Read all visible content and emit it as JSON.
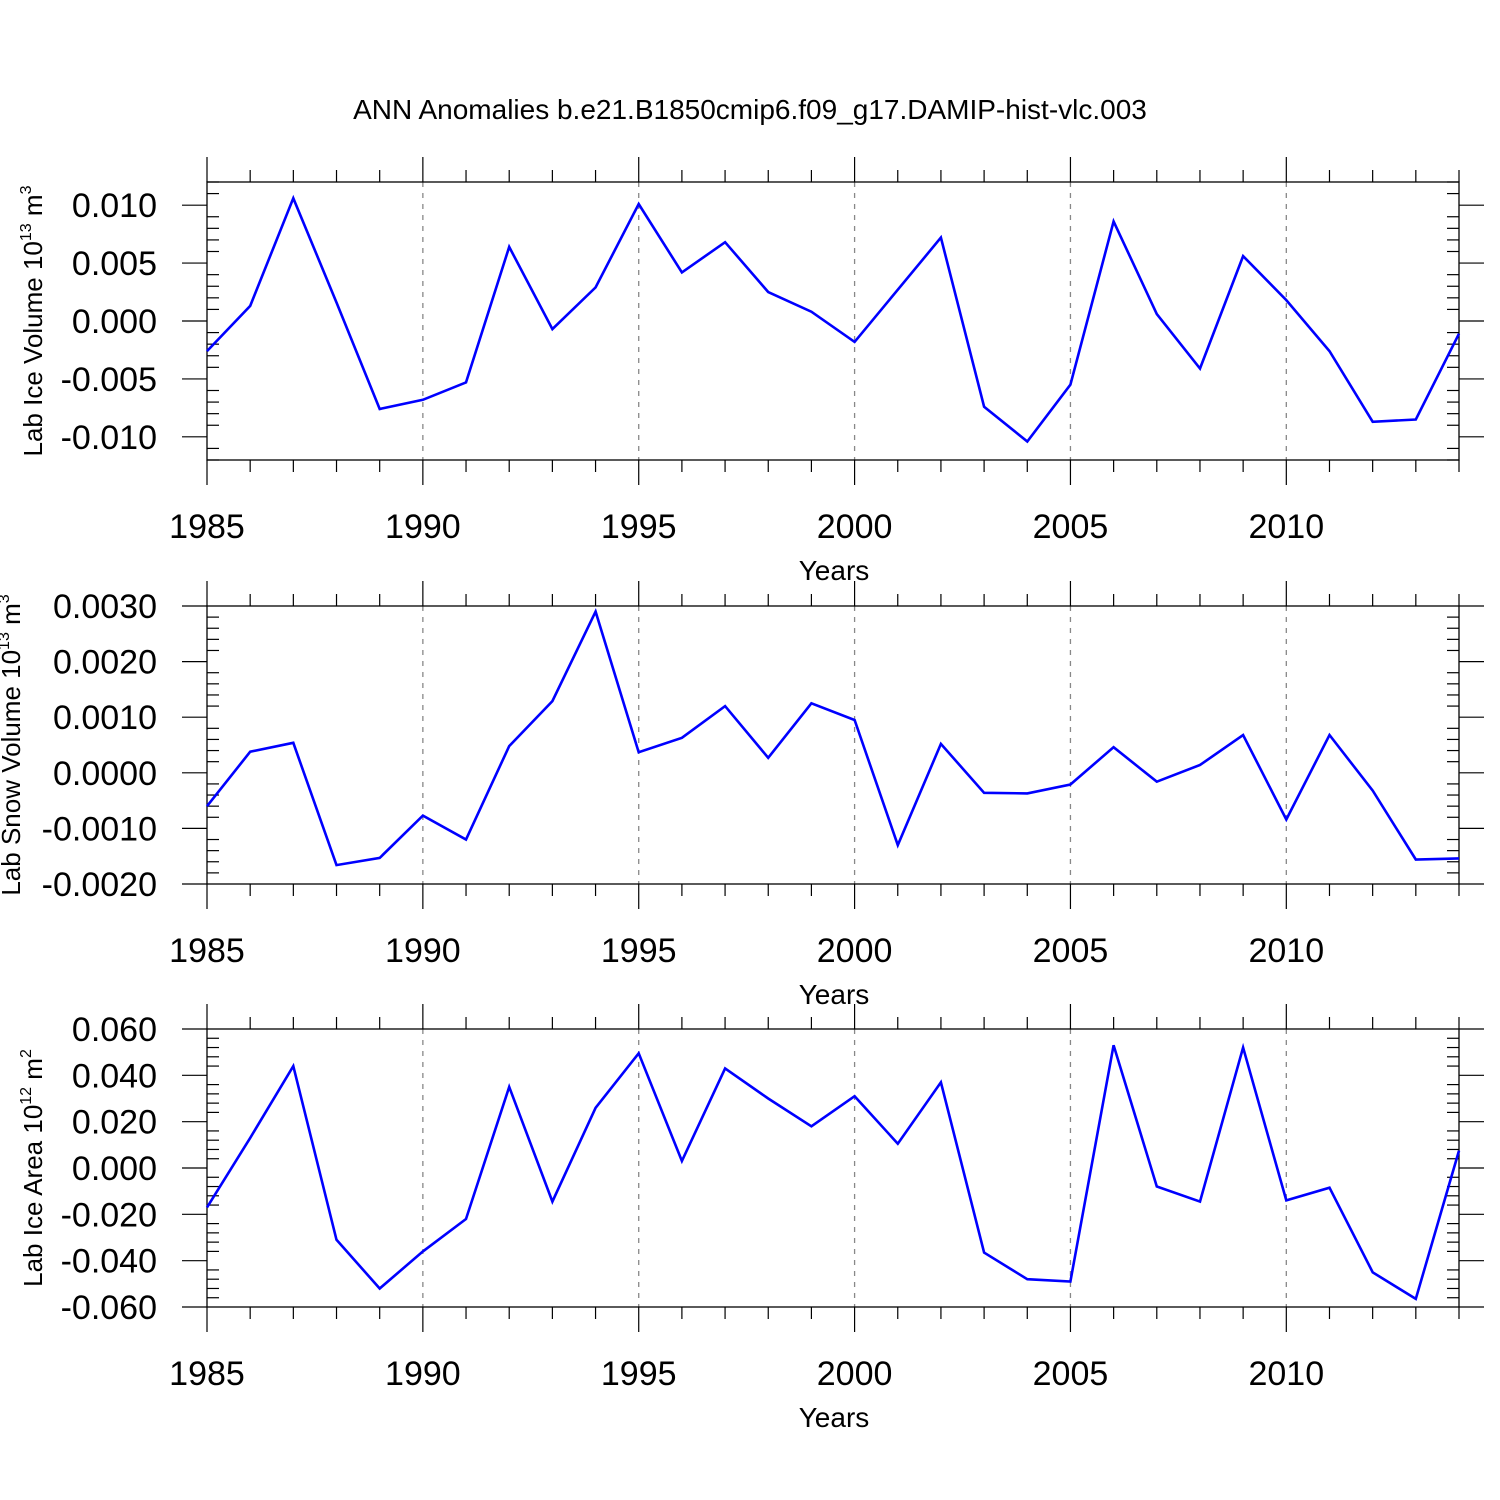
{
  "title": "ANN Anomalies b.e21.B1850cmip6.f09_g17.DAMIP-hist-vlc.003",
  "line_color": "#0000ff",
  "chart_data": [
    {
      "type": "line",
      "ylabel": {
        "prefix": "Lab Ice Volume 10",
        "exp": "13",
        "unit": " m",
        "unit_exp": "3"
      },
      "xlabel": "Years",
      "x": [
        1985,
        1986,
        1987,
        1988,
        1989,
        1990,
        1991,
        1992,
        1993,
        1994,
        1995,
        1996,
        1997,
        1998,
        1999,
        2000,
        2001,
        2002,
        2003,
        2004,
        2005,
        2006,
        2007,
        2008,
        2009,
        2010,
        2011,
        2012,
        2013,
        2014
      ],
      "y": [
        -0.0026,
        0.0013,
        0.0106,
        0.0016,
        -0.0076,
        -0.0068,
        -0.0053,
        0.0064,
        -0.0007,
        0.0029,
        0.0101,
        0.0042,
        0.0068,
        0.0025,
        0.0008,
        -0.0018,
        0.0027,
        0.0072,
        -0.0074,
        -0.0104,
        -0.0055,
        0.0086,
        0.0006,
        -0.0041,
        0.0056,
        0.0018,
        -0.0026,
        -0.0087,
        -0.0085,
        -0.0011
      ],
      "xlim": [
        1985,
        2014
      ],
      "ylim": [
        -0.012,
        0.012
      ],
      "yticks": [
        -0.01,
        -0.005,
        0.0,
        0.005,
        0.01
      ],
      "ytick_labels": [
        "-0.010",
        "-0.005",
        "0.000",
        "0.005",
        "0.010"
      ],
      "xticks": [
        1985,
        1990,
        1995,
        2000,
        2005,
        2010
      ],
      "xtick_labels": [
        "1985",
        "1990",
        "1995",
        "2000",
        "2005",
        "2010"
      ],
      "grid": "x-dashed"
    },
    {
      "type": "line",
      "ylabel": {
        "prefix": "Lab Snow Volume 10",
        "exp": "13",
        "unit": " m",
        "unit_exp": "3"
      },
      "xlabel": "Years",
      "x": [
        1985,
        1986,
        1987,
        1988,
        1989,
        1990,
        1991,
        1992,
        1993,
        1994,
        1995,
        1996,
        1997,
        1998,
        1999,
        2000,
        2001,
        2002,
        2003,
        2004,
        2005,
        2006,
        2007,
        2008,
        2009,
        2010,
        2011,
        2012,
        2013,
        2014
      ],
      "y": [
        -0.0006,
        0.00038,
        0.00054,
        -0.00166,
        -0.00153,
        -0.00077,
        -0.0012,
        0.00048,
        0.00129,
        0.0029,
        0.00037,
        0.00063,
        0.0012,
        0.00027,
        0.00125,
        0.00095,
        -0.0013,
        0.00052,
        -0.00036,
        -0.00037,
        -0.00021,
        0.00046,
        -0.00016,
        0.00014,
        0.00068,
        -0.00084,
        0.00068,
        -0.00032,
        -0.00156,
        -0.00154
      ],
      "xlim": [
        1985,
        2014
      ],
      "ylim": [
        -0.002,
        0.003
      ],
      "yticks": [
        -0.002,
        -0.001,
        0.0,
        0.001,
        0.002,
        0.003
      ],
      "ytick_labels": [
        "-0.0020",
        "-0.0010",
        "0.0000",
        "0.0010",
        "0.0020",
        "0.0030"
      ],
      "xticks": [
        1985,
        1990,
        1995,
        2000,
        2005,
        2010
      ],
      "xtick_labels": [
        "1985",
        "1990",
        "1995",
        "2000",
        "2005",
        "2010"
      ],
      "grid": "x-dashed"
    },
    {
      "type": "line",
      "ylabel": {
        "prefix": "Lab Ice Area 10",
        "exp": "12",
        "unit": " m",
        "unit_exp": "2"
      },
      "xlabel": "Years",
      "x": [
        1985,
        1986,
        1987,
        1988,
        1989,
        1990,
        1991,
        1992,
        1993,
        1994,
        1995,
        1996,
        1997,
        1998,
        1999,
        2000,
        2001,
        2002,
        2003,
        2004,
        2005,
        2006,
        2007,
        2008,
        2009,
        2010,
        2011,
        2012,
        2013,
        2014
      ],
      "y": [
        -0.017,
        0.013,
        0.044,
        -0.031,
        -0.052,
        -0.036,
        -0.022,
        0.035,
        -0.0145,
        0.026,
        0.0495,
        0.003,
        0.043,
        0.03,
        0.018,
        0.031,
        0.0105,
        0.037,
        -0.0365,
        -0.048,
        -0.049,
        0.053,
        -0.008,
        -0.0145,
        0.052,
        -0.014,
        -0.0085,
        -0.045,
        -0.0565,
        0.0075
      ],
      "xlim": [
        1985,
        2014
      ],
      "ylim": [
        -0.06,
        0.06
      ],
      "yticks": [
        -0.06,
        -0.04,
        -0.02,
        0.0,
        0.02,
        0.04,
        0.06
      ],
      "ytick_labels": [
        "-0.060",
        "-0.040",
        "-0.020",
        "0.000",
        "0.020",
        "0.040",
        "0.060"
      ],
      "xticks": [
        1985,
        1990,
        1995,
        2000,
        2005,
        2010
      ],
      "xtick_labels": [
        "1985",
        "1990",
        "1995",
        "2000",
        "2005",
        "2010"
      ],
      "grid": "x-dashed"
    }
  ]
}
